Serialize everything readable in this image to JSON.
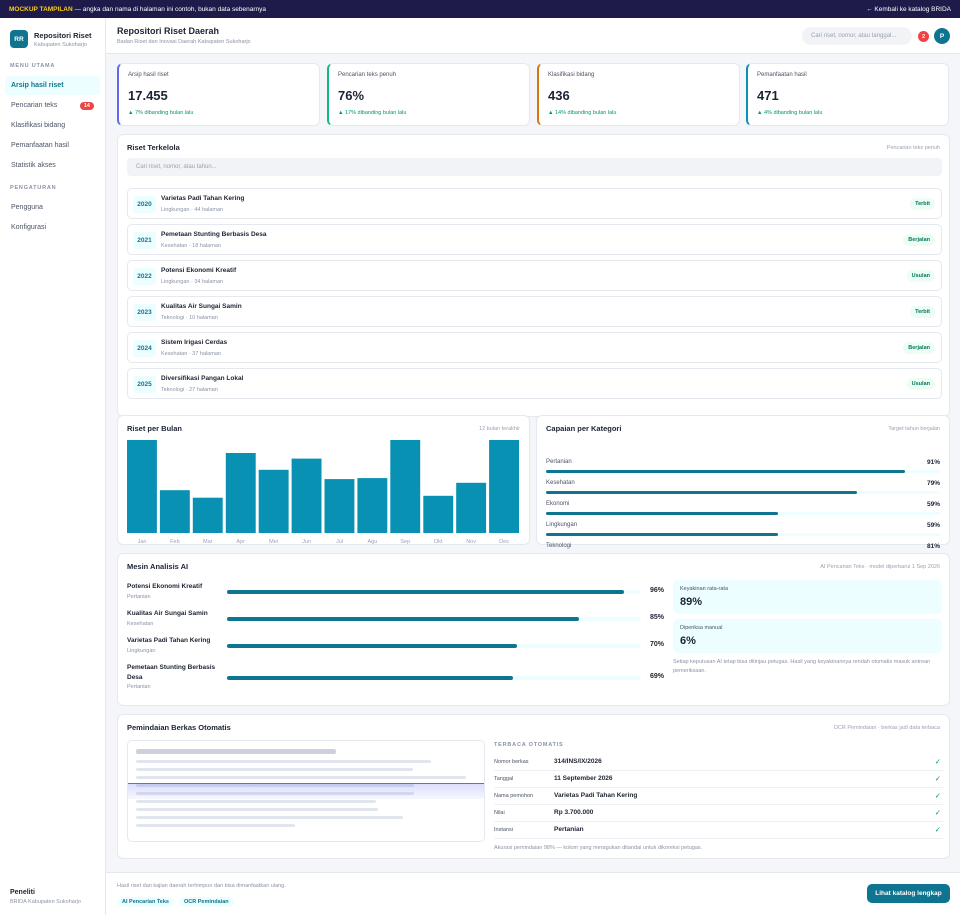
{
  "banner": {
    "tag": "MOCKUP TAMPILAN",
    "text": " — angka dan nama di halaman ini contoh, bukan data sebenarnya",
    "back": "← Kembali ke katalog BRIDA"
  },
  "brand": {
    "logo": "RR",
    "title": "Repositori Riset",
    "subtitle": "Kabupaten Sukoharjo"
  },
  "nav": {
    "section_main": "MENU UTAMA",
    "main_items": [
      {
        "label": "Arsip hasil riset",
        "badge": null
      },
      {
        "label": "Pencarian teks",
        "badge": "14"
      },
      {
        "label": "Klasifikasi bidang",
        "badge": null
      },
      {
        "label": "Pemanfaatan hasil",
        "badge": null
      },
      {
        "label": "Statistik akses",
        "badge": null
      }
    ],
    "section_settings": "PENGATURAN",
    "settings_items": [
      {
        "label": "Pengguna"
      },
      {
        "label": "Konfigurasi"
      }
    ]
  },
  "sidebar_footer": {
    "role": "Peneliti",
    "org": "BRIDA Kabupaten Sukoharjo"
  },
  "header": {
    "title": "Repositori Riset Daerah",
    "subtitle": "Badan Riset dan Inovasi Daerah Kabupaten Sukoharjo",
    "search_placeholder": "Cari riset, nomor, atau tanggal...",
    "notif_count": "2",
    "avatar": "P"
  },
  "kpis": [
    {
      "label": "Arsip hasil riset",
      "value": "17.455",
      "delta": "▲ 7% dibanding bulan lalu",
      "color": "#6366f1"
    },
    {
      "label": "Pencarian teks penuh",
      "value": "76%",
      "delta": "▲ 17% dibanding bulan lalu",
      "color": "#10b981"
    },
    {
      "label": "Klasifikasi bidang",
      "value": "436",
      "delta": "▲ 14% dibanding bulan lalu",
      "color": "#d97706"
    },
    {
      "label": "Pemanfaatan hasil",
      "value": "471",
      "delta": "▲ 4% dibanding bulan lalu",
      "color": "#0891b2"
    }
  ],
  "research": {
    "title": "Riset Terkelola",
    "note": "Pencarian teks penuh",
    "search_placeholder": "Cari riset, nomor, atau tahun...",
    "rows": [
      {
        "year": "2020",
        "title": "Varietas Padi Tahan Kering",
        "meta": "Lingkungan · 44 halaman",
        "status": "Terbit"
      },
      {
        "year": "2021",
        "title": "Pemetaan Stunting Berbasis Desa",
        "meta": "Kesehatan · 18 halaman",
        "status": "Berjalan"
      },
      {
        "year": "2022",
        "title": "Potensi Ekonomi Kreatif",
        "meta": "Lingkungan · 34 halaman",
        "status": "Usulan"
      },
      {
        "year": "2023",
        "title": "Kualitas Air Sungai Samin",
        "meta": "Teknologi · 10 halaman",
        "status": "Terbit"
      },
      {
        "year": "2024",
        "title": "Sistem Irigasi Cerdas",
        "meta": "Kesehatan · 37 halaman",
        "status": "Berjalan"
      },
      {
        "year": "2025",
        "title": "Diversifikasi Pangan Lokal",
        "meta": "Teknologi · 27 halaman",
        "status": "Usulan"
      }
    ]
  },
  "chart_data": {
    "type": "bar",
    "title": "Riset per Bulan",
    "note": "12 bulan terakhir",
    "categories": [
      "Jan",
      "Feb",
      "Mar",
      "Apr",
      "Mei",
      "Jun",
      "Jul",
      "Agu",
      "Sep",
      "Okt",
      "Nov",
      "Des"
    ],
    "values": [
      100,
      46,
      38,
      86,
      68,
      80,
      58,
      59,
      100,
      40,
      54,
      100
    ],
    "ylim": [
      0,
      100
    ],
    "color": "#0891b2"
  },
  "progress": {
    "title": "Capaian per Kategori",
    "note": "Target tahun berjalan",
    "items": [
      {
        "label": "Pertanian",
        "value": "91%",
        "fraction": 0.91
      },
      {
        "label": "Kesehatan",
        "value": "79%",
        "fraction": 0.79
      },
      {
        "label": "Ekonomi",
        "value": "59%",
        "fraction": 0.59
      },
      {
        "label": "Lingkungan",
        "value": "59%",
        "fraction": 0.59
      },
      {
        "label": "Teknologi",
        "value": "81%",
        "fraction": 0.81
      }
    ]
  },
  "ai": {
    "title": "Mesin Analisis AI",
    "note": "AI Pencarian Teks · model diperbarui 1 Sep 2026",
    "items": [
      {
        "name": "Potensi Ekonomi Kreatif",
        "category": "Pertanian",
        "pct": "96%",
        "fraction": 0.96
      },
      {
        "name": "Kualitas Air Sungai Samin",
        "category": "Kesehatan",
        "pct": "85%",
        "fraction": 0.85
      },
      {
        "name": "Varietas Padi Tahan Kering",
        "category": "Lingkungan",
        "pct": "70%",
        "fraction": 0.7
      },
      {
        "name": "Pemetaan Stunting Berbasis Desa",
        "category": "Pertanian",
        "pct": "69%",
        "fraction": 0.69
      }
    ],
    "confidence_label": "Keyakinan rata-rata",
    "confidence_value": "89%",
    "manual_label": "Diperiksa manual",
    "manual_value": "6%",
    "footnote": "Setiap keputusan AI tetap bisa ditinjau petugas. Hasil yang keyakinannya rendah otomatis masuk antrean pemeriksaan."
  },
  "ocr": {
    "title": "Pemindaian Berkas Otomatis",
    "note": "OCR Pemindaian · berkas jadi data terbaca",
    "heading": "TERBACA OTOMATIS",
    "fields": [
      {
        "label": "Nomor berkas",
        "value": "314/INS/IX/2026"
      },
      {
        "label": "Tanggal",
        "value": "11 September 2026"
      },
      {
        "label": "Nama pemohon",
        "value": "Varietas Padi Tahan Kering"
      },
      {
        "label": "Nilai",
        "value": "Rp 3.700.000"
      },
      {
        "label": "Instansi",
        "value": "Pertanian"
      }
    ],
    "check": "✓",
    "footnote": "Akurasi pemindaian 98% — kolom yang meragukan ditandai untuk dikoreksi petugas."
  },
  "footer": {
    "text": "Hasil riset dan kajian daerah terhimpun dan bisa dimanfaatkan ulang.",
    "chip1": "AI Pencarian Teks",
    "chip2": "OCR Pemindaian",
    "cta": "Lihat katalog lengkap"
  }
}
